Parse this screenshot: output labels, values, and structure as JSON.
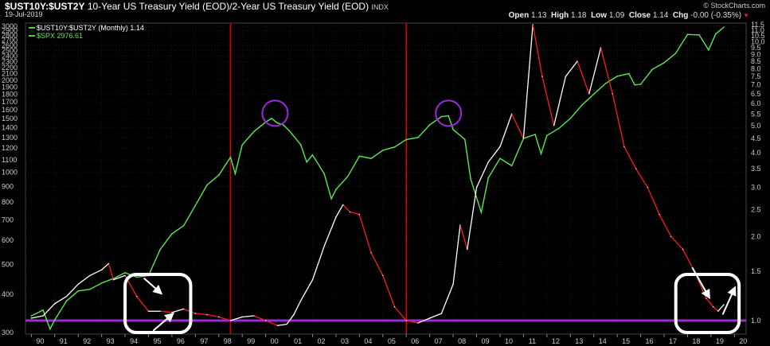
{
  "header": {
    "symbol": "$UST10Y:$UST2Y",
    "description": "10-Year US Treasury Yield (EOD)/2-Year US Treasury Yield (EOD)",
    "exchange": "INDX",
    "date": "19-Jul-2019",
    "brand": "© StockCharts.com",
    "ohlc": [
      {
        "label": "Open",
        "value": "1.13"
      },
      {
        "label": "High",
        "value": "1.18"
      },
      {
        "label": "Low",
        "value": "1.09"
      },
      {
        "label": "Close",
        "value": "1.14"
      },
      {
        "label": "Chg",
        "value": "-0.00 (-0.35%)"
      }
    ]
  },
  "legend": [
    {
      "text": "$UST10Y:$UST2Y (Monthly) 1.14",
      "color": "#4ccb3d"
    },
    {
      "text": "$SPX 2976.61",
      "color": "#4ccb3d"
    }
  ],
  "colors": {
    "spx": "#5aea4e",
    "ratio_down": "#ff1a1a",
    "ratio_up": "#ffffff",
    "vline": "#e00000",
    "baseline": "#9b2bd8",
    "circle": "#9b2bd8",
    "box": "#ffffff"
  },
  "chart_data": {
    "type": "line",
    "x_tick_labels": [
      "90",
      "91",
      "92",
      "93",
      "94",
      "95",
      "96",
      "97",
      "98",
      "99",
      "00",
      "01",
      "02",
      "03",
      "04",
      "05",
      "06",
      "07",
      "08",
      "09",
      "10",
      "11",
      "12",
      "13",
      "14",
      "15",
      "16",
      "17",
      "18",
      "19",
      "20"
    ],
    "left_axis": {
      "scale": "log",
      "ticks": [
        300,
        400,
        500,
        600,
        700,
        800,
        900,
        1000,
        1100,
        1200,
        1300,
        1400,
        1500,
        1600,
        1700,
        1800,
        1900,
        2000,
        2100,
        2200,
        2300,
        2400,
        2500,
        2600,
        2700,
        2800,
        2900,
        3000
      ]
    },
    "right_axis": {
      "scale": "log",
      "ticks": [
        1.0,
        1.5,
        2.0,
        2.5,
        3.0,
        3.5,
        4.0,
        4.5,
        5.0,
        5.5,
        6.0,
        6.5,
        7.0,
        7.5,
        8.0,
        8.5,
        9.0,
        9.5,
        10.0,
        10.5,
        11.0,
        11.5
      ]
    },
    "series": [
      {
        "name": "$SPX",
        "axis": "left",
        "points": [
          [
            1990.0,
            340
          ],
          [
            1990.5,
            355
          ],
          [
            1990.8,
            308
          ],
          [
            1991.0,
            330
          ],
          [
            1991.5,
            380
          ],
          [
            1992.0,
            410
          ],
          [
            1992.5,
            415
          ],
          [
            1993.0,
            435
          ],
          [
            1993.5,
            450
          ],
          [
            1994.0,
            470
          ],
          [
            1994.5,
            455
          ],
          [
            1995.0,
            460
          ],
          [
            1995.5,
            560
          ],
          [
            1996.0,
            630
          ],
          [
            1996.5,
            670
          ],
          [
            1997.0,
            780
          ],
          [
            1997.5,
            910
          ],
          [
            1998.0,
            980
          ],
          [
            1998.5,
            1120
          ],
          [
            1998.7,
            990
          ],
          [
            1999.0,
            1230
          ],
          [
            1999.5,
            1360
          ],
          [
            2000.0,
            1460
          ],
          [
            2000.25,
            1500
          ],
          [
            2000.5,
            1450
          ],
          [
            2000.75,
            1430
          ],
          [
            2001.0,
            1370
          ],
          [
            2001.5,
            1230
          ],
          [
            2001.75,
            1080
          ],
          [
            2002.0,
            1140
          ],
          [
            2002.5,
            990
          ],
          [
            2002.8,
            820
          ],
          [
            2003.0,
            880
          ],
          [
            2003.5,
            970
          ],
          [
            2004.0,
            1130
          ],
          [
            2004.5,
            1110
          ],
          [
            2005.0,
            1180
          ],
          [
            2005.5,
            1210
          ],
          [
            2006.0,
            1280
          ],
          [
            2006.5,
            1300
          ],
          [
            2007.0,
            1430
          ],
          [
            2007.5,
            1520
          ],
          [
            2007.8,
            1530
          ],
          [
            2008.0,
            1380
          ],
          [
            2008.5,
            1280
          ],
          [
            2008.75,
            950
          ],
          [
            2009.2,
            740
          ],
          [
            2009.5,
            960
          ],
          [
            2010.0,
            1110
          ],
          [
            2010.5,
            1050
          ],
          [
            2011.0,
            1290
          ],
          [
            2011.5,
            1330
          ],
          [
            2011.75,
            1150
          ],
          [
            2012.0,
            1320
          ],
          [
            2012.5,
            1390
          ],
          [
            2013.0,
            1500
          ],
          [
            2013.5,
            1660
          ],
          [
            2014.0,
            1800
          ],
          [
            2014.5,
            1950
          ],
          [
            2015.0,
            2060
          ],
          [
            2015.5,
            2100
          ],
          [
            2015.75,
            1930
          ],
          [
            2016.0,
            1940
          ],
          [
            2016.5,
            2170
          ],
          [
            2017.0,
            2280
          ],
          [
            2017.5,
            2450
          ],
          [
            2018.0,
            2820
          ],
          [
            2018.5,
            2810
          ],
          [
            2018.9,
            2510
          ],
          [
            2019.2,
            2830
          ],
          [
            2019.55,
            2980
          ]
        ]
      },
      {
        "name": "$UST10Y:$UST2Y",
        "axis": "right",
        "points": [
          [
            1990.0,
            1.02
          ],
          [
            1990.5,
            1.04
          ],
          [
            1991.0,
            1.15
          ],
          [
            1991.5,
            1.22
          ],
          [
            1992.0,
            1.35
          ],
          [
            1992.5,
            1.45
          ],
          [
            1993.0,
            1.52
          ],
          [
            1993.3,
            1.6
          ],
          [
            1993.5,
            1.4
          ],
          [
            1994.0,
            1.45
          ],
          [
            1994.5,
            1.22
          ],
          [
            1995.0,
            1.08
          ],
          [
            1995.5,
            1.08
          ],
          [
            1996.0,
            1.07
          ],
          [
            1996.5,
            1.1
          ],
          [
            1997.0,
            1.06
          ],
          [
            1997.5,
            1.05
          ],
          [
            1998.0,
            1.03
          ],
          [
            1998.5,
            1.0
          ],
          [
            1999.0,
            1.03
          ],
          [
            1999.5,
            1.04
          ],
          [
            2000.0,
            1.0
          ],
          [
            2000.5,
            0.96
          ],
          [
            2000.9,
            0.97
          ],
          [
            2001.2,
            1.05
          ],
          [
            2001.5,
            1.18
          ],
          [
            2002.0,
            1.4
          ],
          [
            2002.5,
            1.85
          ],
          [
            2003.0,
            2.35
          ],
          [
            2003.3,
            2.6
          ],
          [
            2003.6,
            2.45
          ],
          [
            2004.0,
            2.4
          ],
          [
            2004.5,
            1.75
          ],
          [
            2005.0,
            1.45
          ],
          [
            2005.5,
            1.12
          ],
          [
            2006.0,
            1.0
          ],
          [
            2006.5,
            0.98
          ],
          [
            2007.0,
            1.02
          ],
          [
            2007.5,
            1.06
          ],
          [
            2008.0,
            1.35
          ],
          [
            2008.3,
            2.2
          ],
          [
            2008.6,
            1.8
          ],
          [
            2009.0,
            3.0
          ],
          [
            2009.5,
            3.7
          ],
          [
            2010.0,
            4.2
          ],
          [
            2010.5,
            5.5
          ],
          [
            2011.0,
            4.5
          ],
          [
            2011.4,
            11.5
          ],
          [
            2011.8,
            7.5
          ],
          [
            2012.3,
            5.0
          ],
          [
            2012.8,
            7.5
          ],
          [
            2013.3,
            8.5
          ],
          [
            2013.8,
            6.5
          ],
          [
            2014.3,
            9.5
          ],
          [
            2014.8,
            6.5
          ],
          [
            2015.3,
            4.2
          ],
          [
            2015.8,
            3.5
          ],
          [
            2016.3,
            3.0
          ],
          [
            2016.8,
            2.4
          ],
          [
            2017.3,
            2.0
          ],
          [
            2017.8,
            1.8
          ],
          [
            2018.3,
            1.5
          ],
          [
            2018.8,
            1.2
          ],
          [
            2019.1,
            1.12
          ],
          [
            2019.3,
            1.08
          ],
          [
            2019.55,
            1.14
          ]
        ]
      }
    ]
  },
  "annotations": {
    "vertical_lines_x": [
      1998.5,
      2006.0
    ],
    "baseline_ratio": 1.0,
    "circles": [
      {
        "x": 2000.4,
        "spx": 1560
      },
      {
        "x": 2007.8,
        "spx": 1560
      }
    ],
    "boxes": [
      {
        "x0": 1994.0,
        "x1": 1996.8
      },
      {
        "x0": 2017.5,
        "x1": 2020.2
      }
    ],
    "arrows": [
      {
        "x1": 1994.8,
        "r1": 1.42,
        "x2": 1995.5,
        "r2": 1.26
      },
      {
        "x1": 1995.2,
        "r1": 0.92,
        "x2": 1996.0,
        "r2": 1.05
      },
      {
        "x1": 2018.2,
        "r1": 1.55,
        "x2": 2018.9,
        "r2": 1.22
      },
      {
        "x1": 2019.5,
        "r1": 1.05,
        "x2": 2020.0,
        "r2": 1.3
      }
    ]
  }
}
